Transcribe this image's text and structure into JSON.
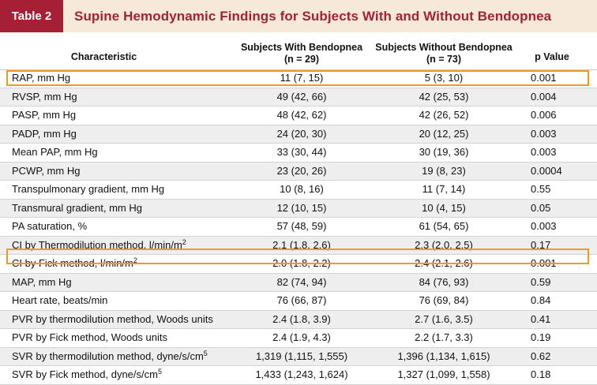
{
  "table": {
    "label": "Table 2",
    "title": "Supine Hemodynamic Findings for Subjects With and Without Bendopnea"
  },
  "columns": {
    "characteristic": "Characteristic",
    "with_line1": "Subjects With Bendopnea",
    "with_line2": "(n = 29)",
    "without_line1": "Subjects Without Bendopnea",
    "without_line2": "(n = 73)",
    "p": "p Value"
  },
  "rows": [
    {
      "name": "RAP, mm Hg",
      "with": "11 (7, 15)",
      "without": "5 (3, 10)",
      "p": "0.001"
    },
    {
      "name": "RVSP, mm Hg",
      "with": "49 (42, 66)",
      "without": "42 (25, 53)",
      "p": "0.004"
    },
    {
      "name": "PASP, mm Hg",
      "with": "48 (42, 62)",
      "without": "42 (26, 52)",
      "p": "0.006"
    },
    {
      "name": "PADP, mm Hg",
      "with": "24 (20, 30)",
      "without": "20 (12, 25)",
      "p": "0.003"
    },
    {
      "name": "Mean PAP, mm Hg",
      "with": "33 (30, 44)",
      "without": "30 (19, 36)",
      "p": "0.003"
    },
    {
      "name": "PCWP, mm Hg",
      "with": "23 (20, 26)",
      "without": "19 (8, 23)",
      "p": "0.0004"
    },
    {
      "name": "Transpulmonary gradient, mm Hg",
      "with": "10 (8, 16)",
      "without": "11 (7, 14)",
      "p": "0.55"
    },
    {
      "name": "Transmural gradient, mm Hg",
      "with": "12 (10, 15)",
      "without": "10 (4, 15)",
      "p": "0.05"
    },
    {
      "name": "PA saturation, %",
      "with": "57 (48, 59)",
      "without": "61 (54, 65)",
      "p": "0.003"
    },
    {
      "name": "CI by Thermodilution method, l/min/m",
      "sup": "2",
      "with": "2.1 (1.8, 2.6)",
      "without": "2.3 (2.0, 2.5)",
      "p": "0.17"
    },
    {
      "name": "CI by Fick method, l/min/m",
      "sup": "2",
      "with": "2.0 (1.8, 2.2)",
      "without": "2.4 (2.1, 2.6)",
      "p": "0.001"
    },
    {
      "name": "MAP, mm Hg",
      "with": "82 (74, 94)",
      "without": "84 (76, 93)",
      "p": "0.59"
    },
    {
      "name": "Heart rate, beats/min",
      "with": "76 (66, 87)",
      "without": "76 (69, 84)",
      "p": "0.84"
    },
    {
      "name": "PVR by thermodilution method, Woods units",
      "with": "2.4 (1.8, 3.9)",
      "without": "2.7 (1.6, 3.5)",
      "p": "0.41"
    },
    {
      "name": "PVR by Fick method, Woods units",
      "with": "2.4 (1.9, 4.3)",
      "without": "2.2 (1.7, 3.3)",
      "p": "0.19"
    },
    {
      "name": "SVR by thermodilution method, dyne/s/cm",
      "sup": "5",
      "with": "1,319 (1,115, 1,555)",
      "without": "1,396 (1,134, 1,615)",
      "p": "0.62"
    },
    {
      "name": "SVR by Fick method, dyne/s/cm",
      "sup": "5",
      "with": "1,433 (1,243, 1,624)",
      "without": "1,327 (1,099, 1,558)",
      "p": "0.18"
    }
  ],
  "highlight_colors": {
    "title_bg": "#f6e9da",
    "label_bg": "#a51f35",
    "highlight_border": "#f39a1e"
  }
}
